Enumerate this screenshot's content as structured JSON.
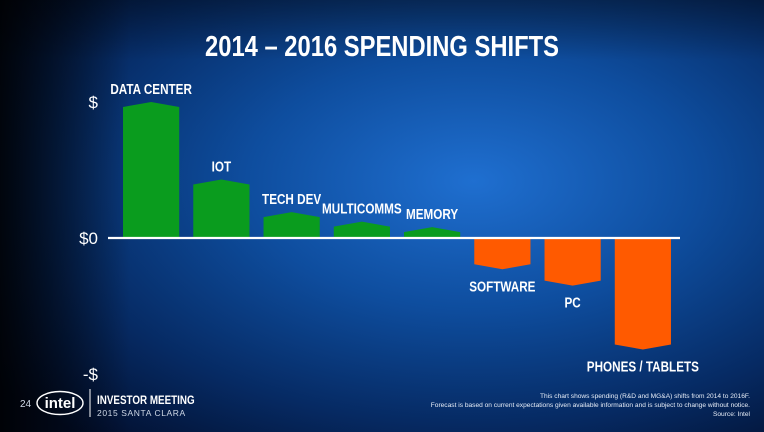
{
  "slide": {
    "title": "2014 – 2016 SPENDING SHIFTS",
    "page_number": "24",
    "logo_text": "intel",
    "event_title": "INVESTOR MEETING",
    "event_subtitle": "2015 SANTA CLARA",
    "footnotes": [
      "This chart shows spending (R&D and MG&A) shifts from 2014  to 2016F.",
      "Forecast is based on current expectations given available information and is subject to change without notice.",
      "Source: Intel"
    ]
  },
  "chart_data": {
    "type": "bar",
    "title": "2014 – 2016 SPENDING SHIFTS",
    "categories": [
      "DATA CENTER",
      "IOT",
      "TECH DEV",
      "MULTICOMMS",
      "MEMORY",
      "SOFTWARE",
      "PC",
      "PHONES / TABLETS"
    ],
    "values": [
      100,
      43,
      19,
      12,
      8,
      -23,
      -35,
      -82
    ],
    "ylim": [
      -100,
      100
    ],
    "y_tick_labels": [
      {
        "value": 100,
        "label": "$"
      },
      {
        "value": 0,
        "label": "$0"
      },
      {
        "value": -100,
        "label": "-$"
      }
    ],
    "positive_color": "#0a9c1e",
    "negative_color": "#ff5a00",
    "axis_color": "#ffffff",
    "grid": false,
    "legend": "none"
  }
}
